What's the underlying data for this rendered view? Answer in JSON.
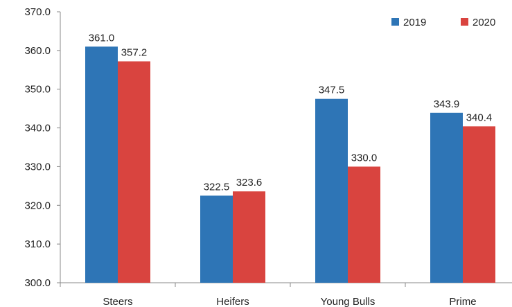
{
  "chart_data": {
    "type": "bar",
    "title": "",
    "xlabel": "",
    "ylabel": "",
    "categories": [
      "Steers",
      "Heifers",
      "Young Bulls",
      "Prime"
    ],
    "series": [
      {
        "name": "2019",
        "color": "#2e75b6",
        "values": [
          361.0,
          322.5,
          347.5,
          343.9
        ]
      },
      {
        "name": "2020",
        "color": "#d9443f",
        "values": [
          357.2,
          323.6,
          330.0,
          340.4
        ]
      }
    ],
    "ylim": [
      300.0,
      370.0
    ],
    "yticks": [
      "300.0",
      "310.0",
      "320.0",
      "330.0",
      "340.0",
      "350.0",
      "360.0",
      "370.0"
    ],
    "data_labels": [
      [
        "361.0",
        "322.5",
        "347.5",
        "343.9"
      ],
      [
        "357.2",
        "323.6",
        "330.0",
        "340.4"
      ]
    ],
    "grid": false,
    "legend_position": "top-right"
  }
}
